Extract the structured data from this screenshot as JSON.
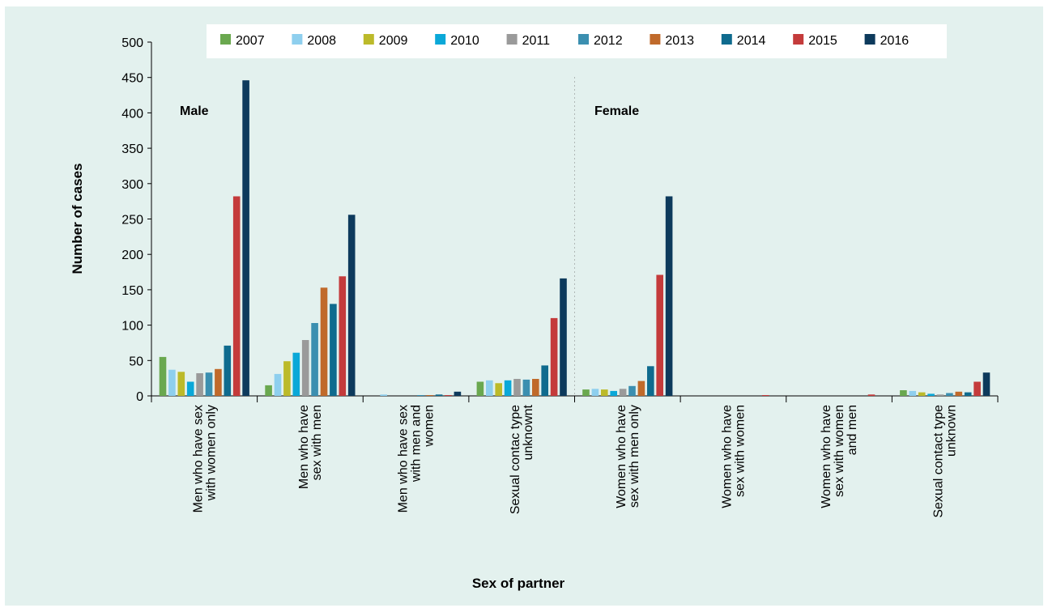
{
  "chart_data": {
    "type": "bar",
    "xlabel": "Sex of partner",
    "ylabel": "Number of cases",
    "ylim": [
      0,
      500
    ],
    "yticks": [
      0,
      50,
      100,
      150,
      200,
      250,
      300,
      350,
      400,
      450,
      500
    ],
    "grid": false,
    "legend_position": "top",
    "group_labels": [
      "Male",
      "Female"
    ],
    "categories": [
      [
        "Men who have sex",
        "with women only"
      ],
      [
        "Men who have",
        "sex with men"
      ],
      [
        "Men who have sex",
        "with men and",
        "women"
      ],
      [
        "Sexual contac type",
        "unknownt"
      ],
      [
        "Women who have",
        "sex with men only"
      ],
      [
        "Women who have",
        "sex with women"
      ],
      [
        "Women who have",
        "sex with women",
        "and men"
      ],
      [
        "Sexual contact type",
        "unknown"
      ]
    ],
    "series": [
      {
        "name": "2007",
        "color": "#6aa84f",
        "values": [
          55,
          15,
          0,
          20,
          9,
          0,
          0,
          8
        ]
      },
      {
        "name": "2008",
        "color": "#8ecfee",
        "values": [
          37,
          31,
          2,
          22,
          10,
          0,
          0,
          7
        ]
      },
      {
        "name": "2009",
        "color": "#bcba2a",
        "values": [
          34,
          49,
          0,
          18,
          9,
          0,
          0,
          5
        ]
      },
      {
        "name": "2010",
        "color": "#0aa8d8",
        "values": [
          20,
          61,
          0,
          22,
          7,
          0,
          0,
          3
        ]
      },
      {
        "name": "2011",
        "color": "#9a9a9a",
        "values": [
          32,
          79,
          0,
          24,
          10,
          0,
          0,
          2
        ]
      },
      {
        "name": "2012",
        "color": "#3b8fb0",
        "values": [
          33,
          103,
          1,
          23,
          14,
          0,
          0,
          4
        ]
      },
      {
        "name": "2013",
        "color": "#c06a2b",
        "values": [
          38,
          153,
          1,
          24,
          21,
          0,
          0,
          6
        ]
      },
      {
        "name": "2014",
        "color": "#0f6b8e",
        "values": [
          71,
          130,
          2,
          43,
          42,
          0,
          0,
          5
        ]
      },
      {
        "name": "2015",
        "color": "#c43b3b",
        "values": [
          282,
          169,
          1,
          110,
          171,
          1,
          2,
          20
        ]
      },
      {
        "name": "2016",
        "color": "#0d3a5c",
        "values": [
          446,
          256,
          6,
          166,
          282,
          0,
          0,
          33
        ]
      }
    ]
  }
}
